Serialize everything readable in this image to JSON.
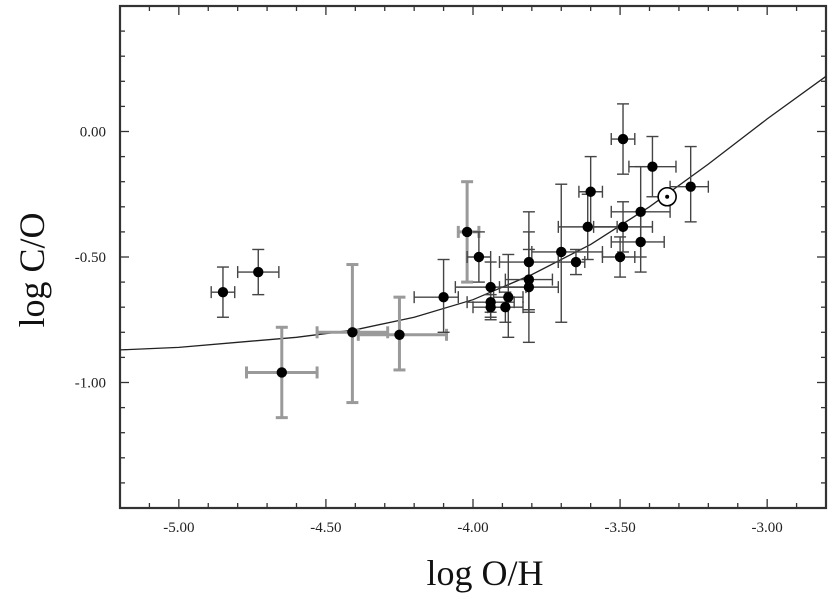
{
  "chart_data": {
    "type": "scatter",
    "title": "",
    "xlabel": "log O/H",
    "ylabel": "log C/O",
    "xlim": [
      -5.2,
      -2.8
    ],
    "ylim": [
      -1.5,
      0.5
    ],
    "grid": false,
    "x_ticks": [
      -5.0,
      -4.5,
      -4.0,
      -3.5,
      -3.0
    ],
    "x_tick_labels": [
      "-5.00",
      "-4.50",
      "-4.00",
      "-3.50",
      "-3.00"
    ],
    "y_ticks": [
      0.0,
      -0.5,
      -1.0
    ],
    "y_tick_labels": [
      "0.00",
      "-0.50",
      "-1.00"
    ],
    "points": [
      {
        "x": -4.85,
        "y": -0.64,
        "xerr": [
          0.04,
          0.04
        ],
        "yerr": [
          0.1,
          0.1
        ]
      },
      {
        "x": -4.73,
        "y": -0.56,
        "xerr": [
          0.07,
          0.07
        ],
        "yerr": [
          0.09,
          0.09
        ]
      },
      {
        "x": -4.65,
        "y": -0.96,
        "xerr": [
          0.12,
          0.12
        ],
        "yerr": [
          0.18,
          0.18
        ],
        "light": true
      },
      {
        "x": -4.41,
        "y": -0.8,
        "xerr": [
          0.12,
          0.12
        ],
        "yerr": [
          0.28,
          0.27
        ],
        "light": true
      },
      {
        "x": -4.25,
        "y": -0.81,
        "xerr": [
          0.14,
          0.16
        ],
        "yerr": [
          0.14,
          0.15
        ],
        "light": true
      },
      {
        "x": -4.1,
        "y": -0.66,
        "xerr": [
          0.1,
          0.05
        ],
        "yerr": [
          0.14,
          0.15
        ]
      },
      {
        "x": -4.02,
        "y": -0.4,
        "xerr": [
          0.03,
          0.04
        ],
        "yerr": [
          0.2,
          0.2
        ],
        "light": true
      },
      {
        "x": -3.98,
        "y": -0.5,
        "xerr": [
          0.04,
          0.04
        ],
        "yerr": [
          0.1,
          0.1
        ]
      },
      {
        "x": -3.94,
        "y": -0.62,
        "xerr": [
          0.12,
          0.12
        ],
        "yerr": [
          0.1,
          0.1
        ]
      },
      {
        "x": -3.94,
        "y": -0.68,
        "xerr": [
          0.08,
          0.08
        ],
        "yerr": [
          0.06,
          0.06
        ]
      },
      {
        "x": -3.94,
        "y": -0.7,
        "xerr": [
          0.06,
          0.06
        ],
        "yerr": [
          0.05,
          0.05
        ]
      },
      {
        "x": -3.89,
        "y": -0.7,
        "xerr": [
          0.06,
          0.06
        ],
        "yerr": [
          0.06,
          0.06
        ]
      },
      {
        "x": -3.88,
        "y": -0.66,
        "xerr": [
          0.05,
          0.05
        ],
        "yerr": [
          0.16,
          0.17
        ]
      },
      {
        "x": -3.81,
        "y": -0.52,
        "xerr": [
          0.1,
          0.1
        ],
        "yerr": [
          0.2,
          0.2
        ]
      },
      {
        "x": -3.81,
        "y": -0.59,
        "xerr": [
          0.08,
          0.08
        ],
        "yerr": [
          0.12,
          0.12
        ]
      },
      {
        "x": -3.81,
        "y": -0.62,
        "xerr": [
          0.1,
          0.1
        ],
        "yerr": [
          0.22,
          0.22
        ]
      },
      {
        "x": -3.7,
        "y": -0.48,
        "xerr": [
          0.1,
          0.14
        ],
        "yerr": [
          0.28,
          0.27
        ]
      },
      {
        "x": -3.65,
        "y": -0.52,
        "xerr": [
          0.06,
          0.03
        ],
        "yerr": [
          0.05,
          0.05
        ]
      },
      {
        "x": -3.61,
        "y": -0.38,
        "xerr": [
          0.1,
          0.1
        ],
        "yerr": [
          0.13,
          0.13
        ]
      },
      {
        "x": -3.6,
        "y": -0.24,
        "xerr": [
          0.04,
          0.04
        ],
        "yerr": [
          0.14,
          0.14
        ]
      },
      {
        "x": -3.5,
        "y": -0.5,
        "xerr": [
          0.06,
          0.05
        ],
        "yerr": [
          0.08,
          0.08
        ]
      },
      {
        "x": -3.49,
        "y": -0.38,
        "xerr": [
          0.1,
          0.1
        ],
        "yerr": [
          0.1,
          0.1
        ]
      },
      {
        "x": -3.49,
        "y": -0.03,
        "xerr": [
          0.04,
          0.04
        ],
        "yerr": [
          0.14,
          0.14
        ]
      },
      {
        "x": -3.43,
        "y": -0.32,
        "xerr": [
          0.1,
          0.1
        ],
        "yerr": [
          0.18,
          0.18
        ]
      },
      {
        "x": -3.43,
        "y": -0.44,
        "xerr": [
          0.1,
          0.08
        ],
        "yerr": [
          0.12,
          0.12
        ]
      },
      {
        "x": -3.39,
        "y": -0.14,
        "xerr": [
          0.08,
          0.08
        ],
        "yerr": [
          0.12,
          0.12
        ]
      },
      {
        "x": -3.26,
        "y": -0.22,
        "xerr": [
          0.07,
          0.06
        ],
        "yerr": [
          0.14,
          0.16
        ]
      }
    ],
    "sun": {
      "x": -3.34,
      "y": -0.26
    },
    "model_curve": [
      [
        -5.2,
        -0.87
      ],
      [
        -5.0,
        -0.86
      ],
      [
        -4.8,
        -0.84
      ],
      [
        -4.6,
        -0.82
      ],
      [
        -4.4,
        -0.79
      ],
      [
        -4.2,
        -0.74
      ],
      [
        -4.0,
        -0.67
      ],
      [
        -3.8,
        -0.57
      ],
      [
        -3.6,
        -0.45
      ],
      [
        -3.4,
        -0.3
      ],
      [
        -3.2,
        -0.13
      ],
      [
        -3.0,
        0.05
      ],
      [
        -2.8,
        0.22
      ]
    ]
  }
}
